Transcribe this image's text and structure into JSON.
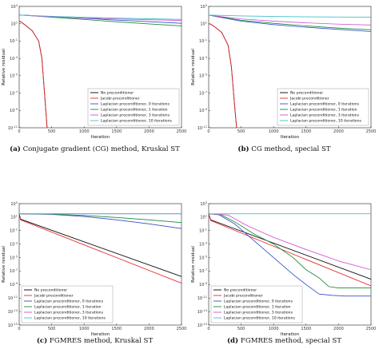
{
  "legend_labels": [
    "No preconditioner",
    "Jacobi preconditioner",
    "Laplacian preconditioner, 0 iterations",
    "Laplacian preconditioner, 1 iteration",
    "Laplacian preconditioner, 3 iterations",
    "Laplacian preconditioner, 10 iterations"
  ],
  "series_colors": [
    "#000000",
    "#e8262b",
    "#3050c8",
    "#1a8a3a",
    "#d050d0",
    "#40c0c8"
  ],
  "chart_data": [
    {
      "type": "line",
      "caption_label": "(a)",
      "caption_text": "Conjugate gradient (CG) method, Kruskal ST",
      "xlabel": "Iteration",
      "ylabel": "Relative residual",
      "xlim": [
        0,
        2500
      ],
      "ylim_log10": [
        -11,
        3
      ],
      "x_ticks": [
        "0",
        "500",
        "1000",
        "1500",
        "2000",
        "2500"
      ],
      "y_ticks": [
        "10^3",
        "10^1",
        "10^-1",
        "10^-3",
        "10^-5",
        "10^-7",
        "10^-9",
        "10^-11"
      ],
      "legend_position": "lower-right",
      "series": [
        {
          "name": "No preconditioner",
          "x": [
            0,
            20,
            100,
            200,
            300,
            350,
            400,
            430
          ],
          "log10_y": [
            1.3,
            1.25,
            0.8,
            0.2,
            -1.0,
            -3.0,
            -8.0,
            -11.0
          ]
        },
        {
          "name": "Jacobi preconditioner",
          "x": [
            0,
            20,
            100,
            200,
            300,
            350,
            400,
            430
          ],
          "log10_y": [
            1.3,
            1.25,
            0.8,
            0.2,
            -1.0,
            -3.0,
            -8.0,
            -11.0
          ]
        },
        {
          "name": "Laplacian preconditioner, 0 iterations",
          "x": [
            0,
            100,
            500,
            1000,
            1500,
            2000,
            2500
          ],
          "log10_y": [
            2.0,
            1.98,
            1.82,
            1.62,
            1.42,
            1.24,
            1.05
          ]
        },
        {
          "name": "Laplacian preconditioner, 1 iteration",
          "x": [
            0,
            100,
            500,
            1000,
            1500,
            2000,
            2500
          ],
          "log10_y": [
            2.0,
            1.97,
            1.75,
            1.5,
            1.22,
            0.98,
            0.75
          ]
        },
        {
          "name": "Laplacian preconditioner, 3 iterations",
          "x": [
            0,
            100,
            500,
            1000,
            1500,
            2000,
            2500
          ],
          "log10_y": [
            2.0,
            1.96,
            1.8,
            1.66,
            1.55,
            1.46,
            1.38
          ]
        },
        {
          "name": "Laplacian preconditioner, 10 iterations",
          "x": [
            0,
            100,
            500,
            1000,
            1500,
            2000,
            2500
          ],
          "log10_y": [
            2.0,
            1.97,
            1.86,
            1.74,
            1.65,
            1.58,
            1.5
          ]
        }
      ]
    },
    {
      "type": "line",
      "caption_label": "(b)",
      "caption_text": "CG method, special ST",
      "xlabel": "Iteration",
      "ylabel": "Relative residual",
      "xlim": [
        0,
        2500
      ],
      "ylim_log10": [
        -11,
        3
      ],
      "x_ticks": [
        "0",
        "500",
        "1000",
        "1500",
        "2000",
        "2500"
      ],
      "y_ticks": [
        "10^3",
        "10^1",
        "10^-1",
        "10^-3",
        "10^-5",
        "10^-7",
        "10^-9",
        "10^-11"
      ],
      "legend_position": "lower-right",
      "series": [
        {
          "name": "No preconditioner",
          "x": [
            0,
            30,
            100,
            200,
            300,
            350,
            400,
            430
          ],
          "log10_y": [
            1.0,
            0.95,
            0.6,
            0.0,
            -1.5,
            -4.0,
            -8.5,
            -11.0
          ]
        },
        {
          "name": "Jacobi preconditioner",
          "x": [
            0,
            30,
            100,
            200,
            300,
            350,
            400,
            430
          ],
          "log10_y": [
            1.0,
            0.95,
            0.6,
            0.0,
            -1.5,
            -4.0,
            -8.5,
            -11.0
          ]
        },
        {
          "name": "Laplacian preconditioner, 0 iterations",
          "x": [
            0,
            100,
            500,
            1000,
            1500,
            2000,
            2500
          ],
          "log10_y": [
            2.0,
            1.85,
            1.3,
            0.9,
            0.6,
            0.35,
            0.1
          ]
        },
        {
          "name": "Laplacian preconditioner, 1 iteration",
          "x": [
            0,
            100,
            500,
            1000,
            1500,
            2000,
            2500
          ],
          "log10_y": [
            2.0,
            1.88,
            1.4,
            1.05,
            0.75,
            0.5,
            0.3
          ]
        },
        {
          "name": "Laplacian preconditioner, 3 iterations",
          "x": [
            0,
            100,
            500,
            1000,
            1500,
            2000,
            2500
          ],
          "log10_y": [
            2.0,
            1.9,
            1.55,
            1.3,
            1.1,
            0.95,
            0.85
          ]
        },
        {
          "name": "Laplacian preconditioner, 10 iterations",
          "x": [
            0,
            100,
            500,
            1000,
            1500,
            2000,
            2500
          ],
          "log10_y": [
            2.0,
            1.98,
            1.9,
            1.84,
            1.8,
            1.77,
            1.75
          ]
        }
      ]
    },
    {
      "type": "line",
      "caption_label": "(c)",
      "caption_text": "FGMRES method, Kruskal ST",
      "xlabel": "Iteration",
      "ylabel": "Relative residual",
      "xlim": [
        0,
        2500
      ],
      "ylim_log10": [
        -15,
        3
      ],
      "x_ticks": [
        "0",
        "500",
        "1000",
        "1500",
        "2000",
        "2500"
      ],
      "y_ticks": [
        "10^3",
        "10^1",
        "10^-1",
        "10^-3",
        "10^-5",
        "10^-7",
        "10^-9",
        "10^-11",
        "10^-13",
        "10^-15"
      ],
      "legend_position": "lower-left",
      "series": [
        {
          "name": "No preconditioner",
          "x": [
            0,
            20,
            2500
          ],
          "log10_y": [
            1.5,
            0.7,
            -7.8
          ]
        },
        {
          "name": "Jacobi preconditioner",
          "x": [
            0,
            20,
            2500
          ],
          "log10_y": [
            1.5,
            0.6,
            -8.8
          ]
        },
        {
          "name": "Laplacian preconditioner, 0 iterations",
          "x": [
            0,
            500,
            1000,
            1500,
            2000,
            2500
          ],
          "log10_y": [
            1.5,
            1.4,
            1.1,
            0.6,
            0.0,
            -0.7
          ]
        },
        {
          "name": "Laplacian preconditioner, 1 iteration",
          "x": [
            0,
            500,
            1000,
            1500,
            2000,
            2500
          ],
          "log10_y": [
            1.5,
            1.45,
            1.25,
            0.95,
            0.6,
            0.2
          ]
        },
        {
          "name": "Laplacian preconditioner, 3 iterations",
          "x": [
            0,
            2500
          ],
          "log10_y": [
            1.5,
            1.5
          ]
        },
        {
          "name": "Laplacian preconditioner, 10 iterations",
          "x": [
            0,
            2500
          ],
          "log10_y": [
            1.5,
            1.5
          ]
        }
      ]
    },
    {
      "type": "line",
      "caption_label": "(d)",
      "caption_text": "FGMRES method, special ST",
      "xlabel": "Iteration",
      "ylabel": "Relative residual",
      "xlim": [
        0,
        2500
      ],
      "ylim_log10": [
        -15,
        3
      ],
      "x_ticks": [
        "0",
        "500",
        "1000",
        "1500",
        "2000",
        "2500"
      ],
      "y_ticks": [
        "10^3",
        "10^1",
        "10^-1",
        "10^-3",
        "10^-5",
        "10^-7",
        "10^-9",
        "10^-11",
        "10^-13",
        "10^-15"
      ],
      "legend_position": "lower-left",
      "series": [
        {
          "name": "No preconditioner",
          "x": [
            0,
            30,
            2500
          ],
          "log10_y": [
            1.5,
            0.6,
            -8.2
          ]
        },
        {
          "name": "Jacobi preconditioner",
          "x": [
            0,
            30,
            2500
          ],
          "log10_y": [
            1.5,
            0.5,
            -9.2
          ]
        },
        {
          "name": "Laplacian preconditioner, 0 iterations",
          "x": [
            0,
            150,
            400,
            700,
            1000,
            1300,
            1500,
            1700,
            1900,
            2100,
            2500
          ],
          "log10_y": [
            1.5,
            1.4,
            0.0,
            -2.5,
            -5.0,
            -7.5,
            -9.0,
            -10.4,
            -10.6,
            -10.7,
            -10.7
          ]
        },
        {
          "name": "Laplacian preconditioner, 1 iteration",
          "x": [
            0,
            200,
            400,
            700,
            1000,
            1300,
            1500,
            1700,
            1850,
            2000,
            2500
          ],
          "log10_y": [
            1.5,
            1.3,
            0.3,
            -1.5,
            -3.0,
            -5.0,
            -6.8,
            -8.0,
            -9.3,
            -9.5,
            -9.5
          ]
        },
        {
          "name": "Laplacian preconditioner, 3 iterations",
          "x": [
            0,
            300,
            600,
            1000,
            1500,
            2000,
            2500
          ],
          "log10_y": [
            1.5,
            1.3,
            -0.3,
            -2.0,
            -3.8,
            -5.5,
            -6.8
          ]
        },
        {
          "name": "Laplacian preconditioner, 10 iterations",
          "x": [
            0,
            2500
          ],
          "log10_y": [
            1.5,
            1.5
          ]
        }
      ]
    }
  ]
}
